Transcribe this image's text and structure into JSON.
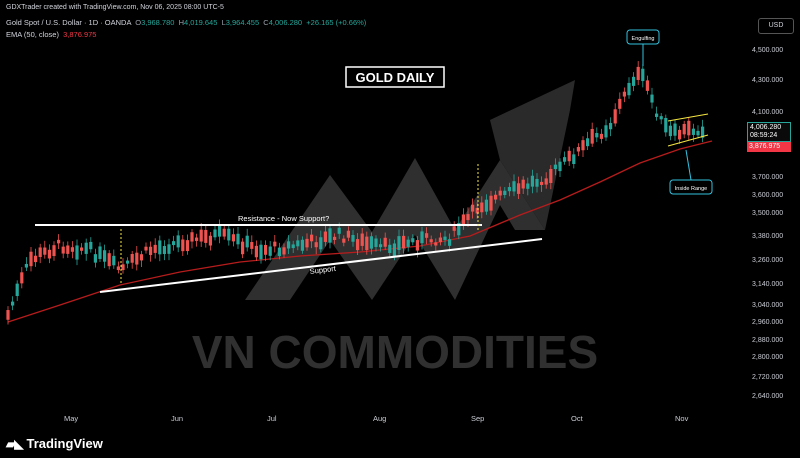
{
  "header": {
    "credit": "GDXTrader created with TradingView.com, Nov 06, 2025 08:00 UTC-5",
    "symbol": "Gold Spot / U.S. Dollar · 1D · OANDA",
    "o_label": "O",
    "o_value": "3,968.780",
    "h_label": "H",
    "h_value": "4,019.645",
    "l_label": "L",
    "l_value": "3,964.455",
    "c_label": "C",
    "c_value": "4,006.280",
    "change": "+26.165 (+0.66%)",
    "ema_label": "EMA (50, close)",
    "ema_value": "3,876.975"
  },
  "currency_button": "USD",
  "chart_title": "GOLD DAILY",
  "watermark": "VN COMMODITIES",
  "annotations": {
    "resistance": "Resistance - Now Support?",
    "support": "Support",
    "engulfing": "Engulfing",
    "inside_range": "Inside Range"
  },
  "price_axis": [
    "4,500.000",
    "4,300.000",
    "4,100.000",
    "3,900.000",
    "3,700.000",
    "3,600.000",
    "3,500.000",
    "3,380.000",
    "3,260.000",
    "3,140.000",
    "3,040.000",
    "2,960.000",
    "2,880.000",
    "2,800.000",
    "2,720.000",
    "2,640.000"
  ],
  "time_axis": [
    "May",
    "Jun",
    "Jul",
    "Aug",
    "Sep",
    "Oct",
    "Nov"
  ],
  "last_price": {
    "price": "4,006.280",
    "countdown": "08:59:24"
  },
  "ema_price": "3,876.975",
  "brand": "TradingView",
  "colors": {
    "up": "#26a69a",
    "down": "#ef5350",
    "ema": "#b71c1c",
    "background": "#000000"
  }
}
